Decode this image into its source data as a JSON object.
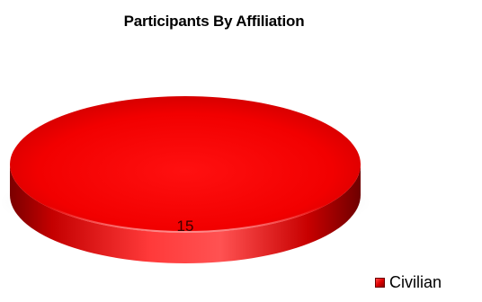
{
  "chart_data": {
    "type": "pie",
    "title": "Participants By Affiliation",
    "labels": [
      "Civilian"
    ],
    "values": [
      15
    ],
    "colors": [
      "#ff0000"
    ],
    "legend": "bottom-right",
    "data_labels": [
      "15"
    ]
  }
}
